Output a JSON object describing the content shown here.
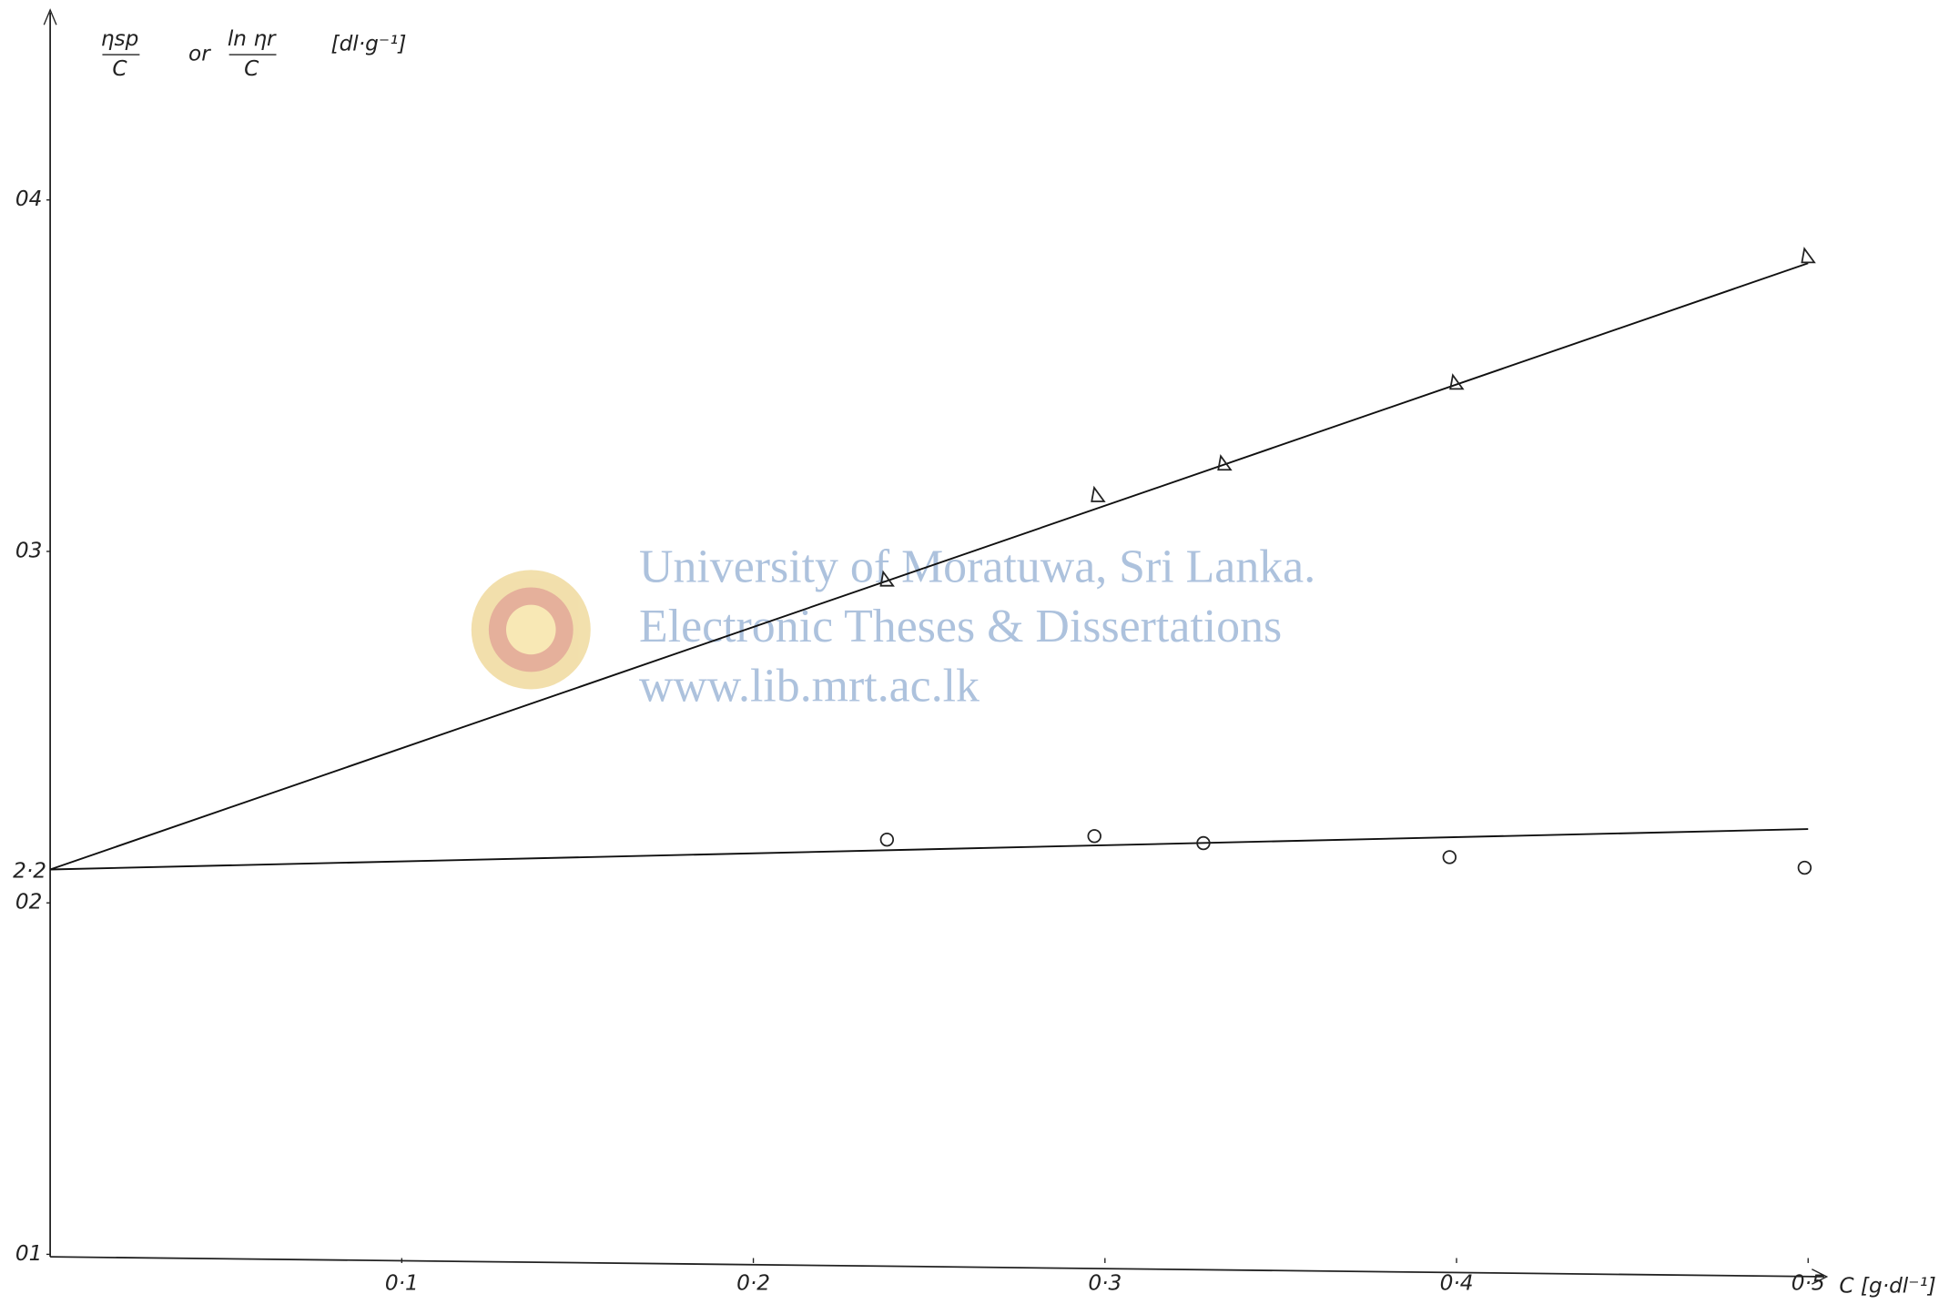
{
  "chart_data": {
    "type": "scatter",
    "y_label": {
      "numerator_1": "ηsp",
      "denominator_1": "C",
      "joiner": "or",
      "numerator_2": "ln ηr",
      "denominator_2": "C",
      "unit": "[dl·g⁻¹]"
    },
    "x_label": "C [g·dl⁻¹]",
    "xlim": [
      0,
      0.5
    ],
    "ylim": [
      0.1,
      0.45
    ],
    "xticks": [
      {
        "value": 0.1,
        "label": "0·1"
      },
      {
        "value": 0.2,
        "label": "0·2"
      },
      {
        "value": 0.3,
        "label": "0·3"
      },
      {
        "value": 0.4,
        "label": "0·4"
      },
      {
        "value": 0.5,
        "label": "0·5"
      }
    ],
    "yticks": [
      {
        "value": 0.1,
        "label": "01"
      },
      {
        "value": 0.2,
        "label": "02"
      },
      {
        "value": 0.3,
        "label": "03"
      },
      {
        "value": 0.4,
        "label": "04"
      }
    ],
    "grid": false,
    "series": [
      {
        "marker": "triangle",
        "color": "#222222",
        "x": [
          0.238,
          0.298,
          0.334,
          0.4,
          0.5
        ],
        "values": [
          0.292,
          0.316,
          0.325,
          0.348,
          0.384
        ]
      },
      {
        "marker": "circle",
        "color": "#222222",
        "x": [
          0.238,
          0.297,
          0.328,
          0.398,
          0.499
        ],
        "values": [
          0.218,
          0.219,
          0.217,
          0.213,
          0.21
        ]
      }
    ],
    "fit_lines": [
      {
        "color": "#111111",
        "x": [
          0,
          0.5
        ],
        "values": [
          0.2095,
          0.382
        ]
      },
      {
        "color": "#111111",
        "x": [
          0,
          0.5
        ],
        "values": [
          0.2095,
          0.221
        ]
      }
    ],
    "annotations": [
      {
        "text": "2·2",
        "x": 0,
        "y": 0.2095
      }
    ]
  },
  "watermark": {
    "lines": [
      "University of Moratuwa, Sri Lanka.",
      "Electronic Theses & Dissertations",
      "www.lib.mrt.ac.lk"
    ]
  }
}
